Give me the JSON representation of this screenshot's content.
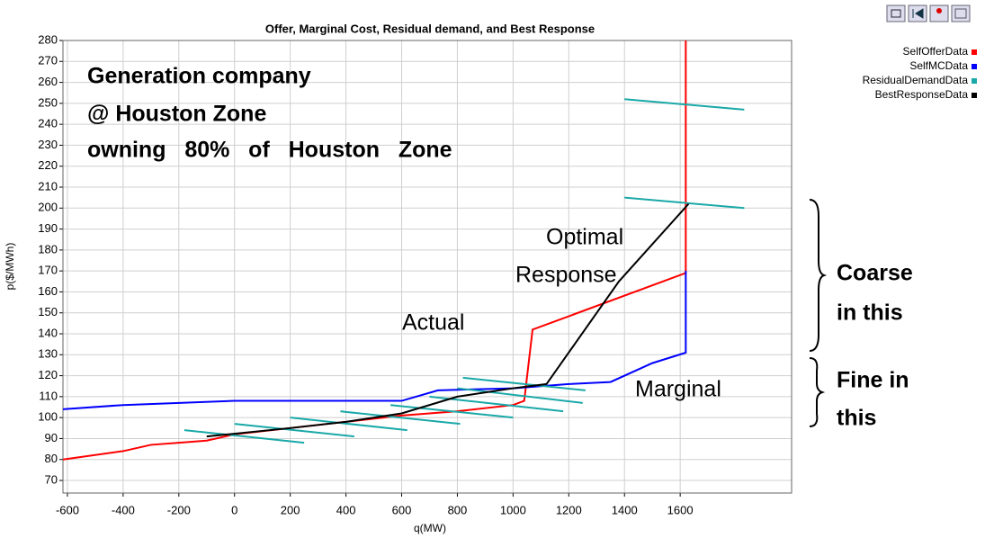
{
  "chart_data": {
    "type": "line",
    "title": "Offer, Marginal Cost, Residual demand, and Best Response",
    "x_label": "q(MW)",
    "y_label": "p($/MWh)",
    "xlim": [
      -616,
      2000
    ],
    "ylim": [
      64,
      280
    ],
    "xticks": [
      -600,
      -400,
      -200,
      0,
      200,
      400,
      600,
      800,
      1000,
      1200,
      1400,
      1600
    ],
    "yticks": [
      70,
      80,
      90,
      100,
      110,
      120,
      130,
      140,
      150,
      160,
      170,
      180,
      190,
      200,
      210,
      220,
      230,
      240,
      250,
      260,
      270,
      280
    ],
    "grid": true,
    "legend": "top-right",
    "series": [
      {
        "name": "SelfOfferData",
        "color": "#ff0000",
        "x": [
          -616,
          -400,
          -300,
          -200,
          -100,
          0,
          200,
          400,
          600,
          800,
          1000,
          1040,
          1070,
          1620,
          1620
        ],
        "values": [
          80,
          84,
          87,
          88,
          89,
          92,
          95,
          98,
          101,
          103,
          106,
          108,
          142,
          169,
          280
        ]
      },
      {
        "name": "SelfMCData",
        "color": "#0000ff",
        "x": [
          -616,
          -400,
          0,
          600,
          730,
          1000,
          1200,
          1350,
          1500,
          1620,
          1620
        ],
        "values": [
          104,
          106,
          108,
          108,
          113,
          114,
          116,
          117,
          126,
          131,
          170
        ]
      },
      {
        "name": "ResidualDemandData",
        "color": "#1aa8a8",
        "x": [
          1400,
          1830,
          null,
          1400,
          1830,
          null,
          820,
          1260,
          null,
          800,
          1250,
          null,
          700,
          1180,
          null,
          560,
          1000,
          null,
          380,
          810,
          null,
          200,
          620,
          null,
          0,
          430,
          null,
          -180,
          250
        ],
        "values": [
          252,
          247,
          null,
          205,
          200,
          null,
          119,
          113,
          null,
          114,
          107,
          null,
          110,
          103,
          null,
          106,
          100,
          null,
          103,
          97,
          null,
          100,
          94,
          null,
          97,
          91,
          null,
          94,
          88
        ]
      },
      {
        "name": "BestResponseData",
        "color": "#000000",
        "x": [
          -100,
          200,
          400,
          600,
          800,
          1000,
          1120,
          1380,
          1630
        ],
        "values": [
          91,
          95,
          98,
          102,
          110,
          114,
          116,
          165,
          202
        ]
      }
    ],
    "annotations": [
      "Generation company",
      "@ Houston Zone",
      "owning   80%   of   Houston   Zone",
      "Optimal",
      "Response",
      "Actual",
      "Marginal",
      "Coarse",
      "in this",
      "Fine in",
      "this"
    ]
  }
}
